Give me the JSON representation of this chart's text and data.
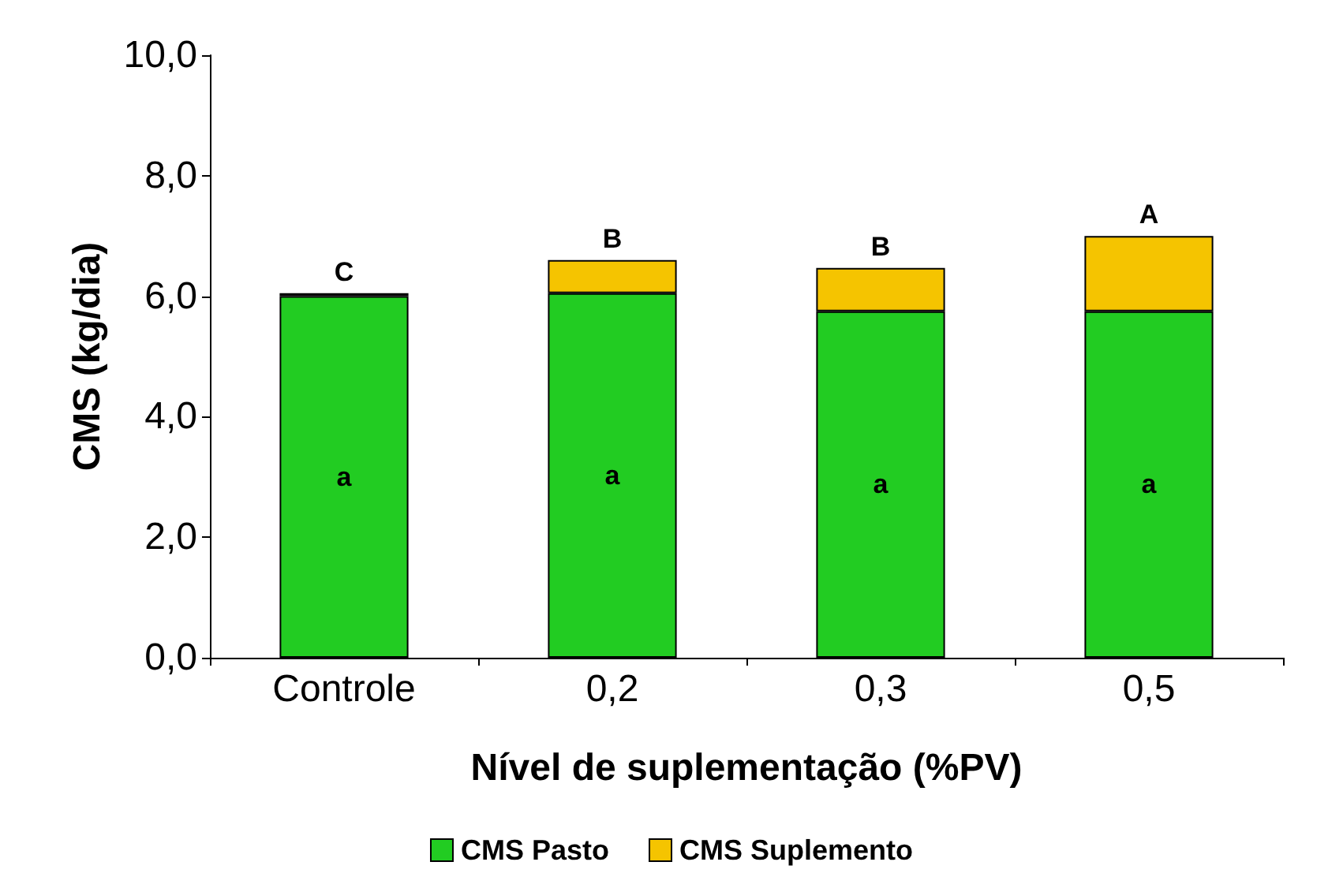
{
  "chart_data": {
    "type": "bar",
    "stacked": true,
    "xlabel": "Nível de suplementação (%PV)",
    "ylabel": "CMS (kg/dia)",
    "categories": [
      "Controle",
      "0,2",
      "0,3",
      "0,5"
    ],
    "series": [
      {
        "name": "CMS Pasto",
        "color": "#22cc22",
        "values": [
          6.0,
          6.05,
          5.75,
          5.75
        ],
        "value_labels": [
          "a",
          "a",
          "a",
          "a"
        ]
      },
      {
        "name": "CMS Suplemento",
        "color": "#f5c400",
        "values": [
          0.05,
          0.55,
          0.72,
          1.25
        ],
        "value_labels": [
          "C",
          "B",
          "B",
          "A"
        ]
      }
    ],
    "ylim": [
      0,
      10
    ],
    "yticks": [
      {
        "value": 0,
        "label": "0,0"
      },
      {
        "value": 2,
        "label": "2,0"
      },
      {
        "value": 4,
        "label": "4,0"
      },
      {
        "value": 6,
        "label": "6,0"
      },
      {
        "value": 8,
        "label": "8,0"
      },
      {
        "value": 10,
        "label": "10,0"
      }
    ],
    "grid": false,
    "legend": "bottom"
  }
}
